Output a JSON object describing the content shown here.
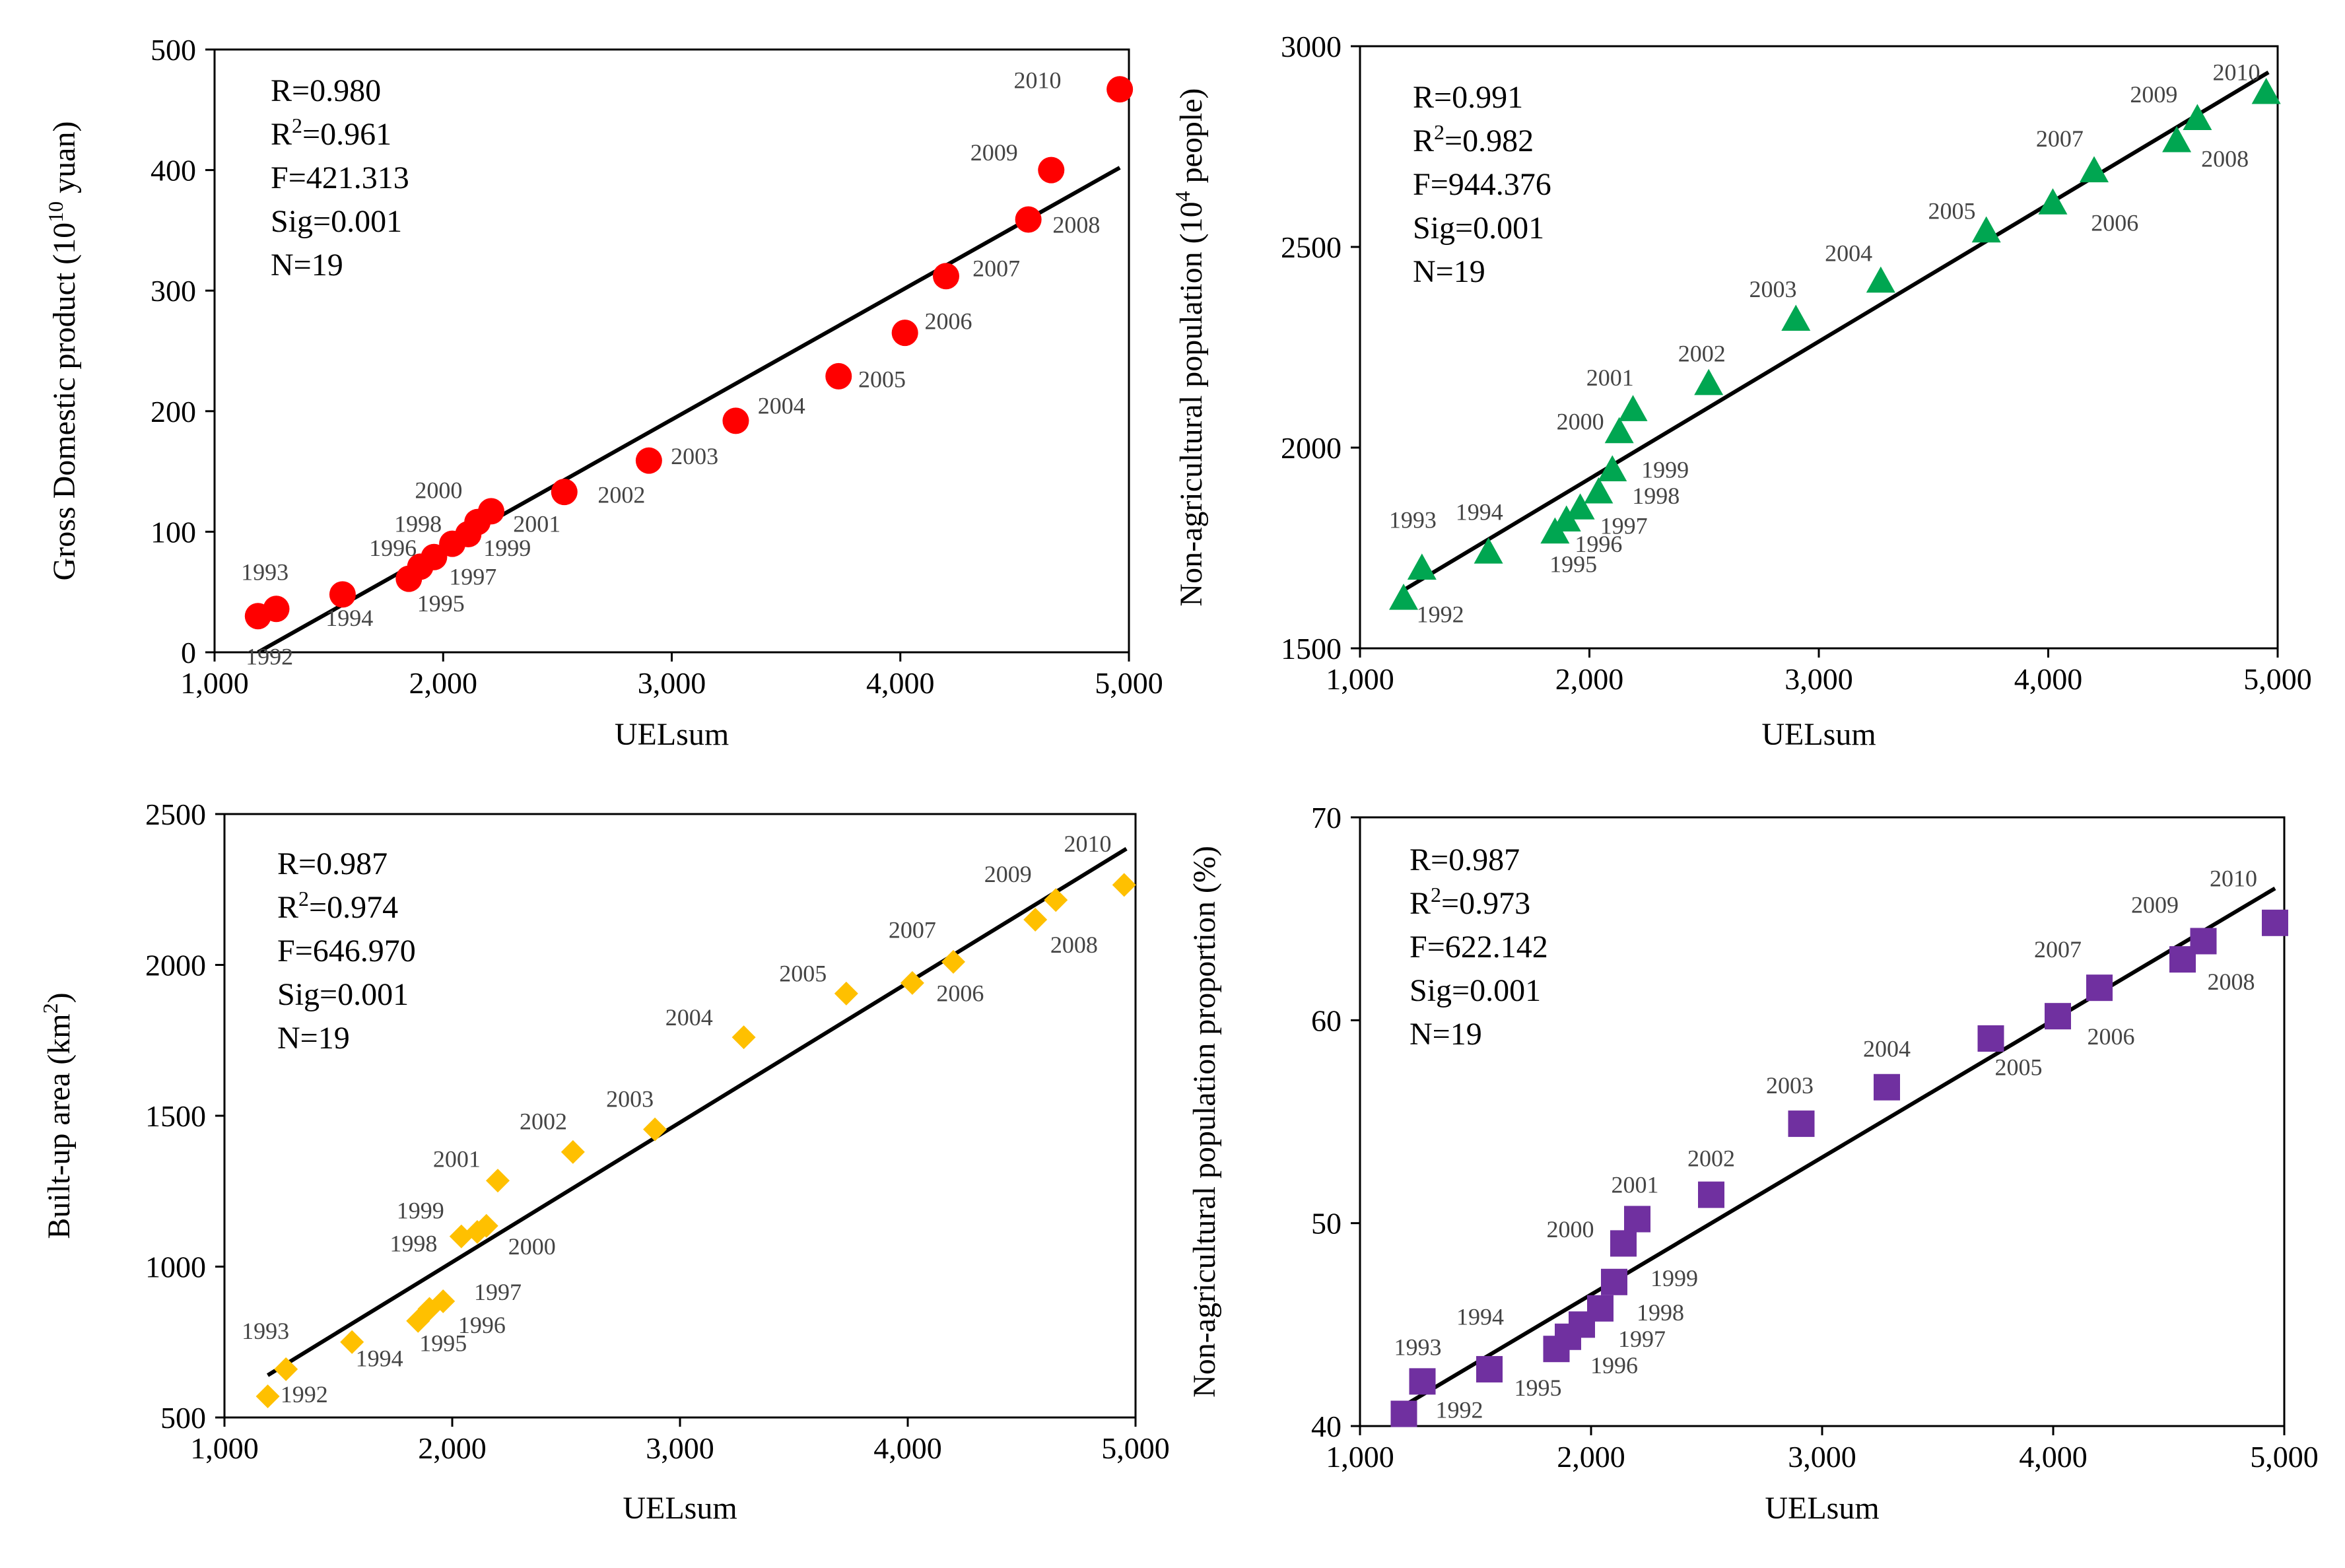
{
  "chart_data": [
    {
      "type": "scatter",
      "marker": "circle",
      "color": "#ff0000",
      "xlabel": "UELsum",
      "ylabel_parts": [
        "Gross Domestic product (10",
        "10",
        " yuan)"
      ],
      "xlim": [
        1000,
        5000
      ],
      "ylim": [
        0,
        500
      ],
      "xticks": [
        1000,
        2000,
        3000,
        4000,
        5000
      ],
      "xtick_labels": [
        "1,000",
        "2,000",
        "3,000",
        "4,000",
        "5,000"
      ],
      "yticks": [
        0,
        100,
        200,
        300,
        400,
        500
      ],
      "ytick_labels": [
        "0",
        "100",
        "200",
        "300",
        "400",
        "500"
      ],
      "stats": [
        {
          "pre": "R=0.980",
          "sup": "",
          "post": ""
        },
        {
          "pre": "R",
          "sup": "2",
          "post": "=0.961"
        },
        {
          "pre": "F=421.313",
          "sup": "",
          "post": ""
        },
        {
          "pre": "Sig=0.001",
          "sup": "",
          "post": ""
        },
        {
          "pre": "N=19",
          "sup": "",
          "post": ""
        }
      ],
      "fit": {
        "x1": 1190,
        "y1": 0,
        "x2": 4960,
        "y2": 402
      },
      "points": [
        {
          "year": "1992",
          "x": 1190,
          "y": 30,
          "lx": 1240,
          "ly": -10
        },
        {
          "year": "1993",
          "x": 1270,
          "y": 36,
          "lx": 1220,
          "ly": 60
        },
        {
          "year": "1994",
          "x": 1560,
          "y": 48,
          "lx": 1590,
          "ly": 22
        },
        {
          "year": "1995",
          "x": 1850,
          "y": 61,
          "lx": 1990,
          "ly": 34
        },
        {
          "year": "1996",
          "x": 1900,
          "y": 71,
          "lx": 1780,
          "ly": 80
        },
        {
          "year": "1997",
          "x": 1960,
          "y": 79,
          "lx": 2130,
          "ly": 56
        },
        {
          "year": "1998",
          "x": 2040,
          "y": 90,
          "lx": 1890,
          "ly": 100
        },
        {
          "year": "1999",
          "x": 2110,
          "y": 98,
          "lx": 2280,
          "ly": 80
        },
        {
          "year": "2000",
          "x": 2150,
          "y": 108,
          "lx": 1980,
          "ly": 128
        },
        {
          "year": "2001",
          "x": 2210,
          "y": 117,
          "lx": 2410,
          "ly": 100
        },
        {
          "year": "2002",
          "x": 2530,
          "y": 133,
          "lx": 2780,
          "ly": 124
        },
        {
          "year": "2003",
          "x": 2900,
          "y": 159,
          "lx": 3100,
          "ly": 156
        },
        {
          "year": "2004",
          "x": 3280,
          "y": 192,
          "lx": 3480,
          "ly": 198
        },
        {
          "year": "2005",
          "x": 3730,
          "y": 229,
          "lx": 3920,
          "ly": 220
        },
        {
          "year": "2006",
          "x": 4020,
          "y": 265,
          "lx": 4210,
          "ly": 268
        },
        {
          "year": "2007",
          "x": 4200,
          "y": 312,
          "lx": 4420,
          "ly": 312
        },
        {
          "year": "2008",
          "x": 4560,
          "y": 359,
          "lx": 4770,
          "ly": 348
        },
        {
          "year": "2009",
          "x": 4660,
          "y": 400,
          "lx": 4410,
          "ly": 408
        },
        {
          "year": "2010",
          "x": 4960,
          "y": 467,
          "lx": 4600,
          "ly": 468
        }
      ]
    },
    {
      "type": "scatter",
      "marker": "triangle",
      "color": "#00a651",
      "xlabel": "UELsum",
      "ylabel_parts": [
        "Non-agricultural population (10",
        "4",
        " people)"
      ],
      "xlim": [
        1000,
        5000
      ],
      "ylim": [
        1500,
        3000
      ],
      "xticks": [
        1000,
        2000,
        3000,
        4000,
        5000
      ],
      "xtick_labels": [
        "1,000",
        "2,000",
        "3,000",
        "4,000",
        "5,000"
      ],
      "yticks": [
        1500,
        2000,
        2500,
        3000
      ],
      "ytick_labels": [
        "1500",
        "2000",
        "2500",
        "3000"
      ],
      "stats": [
        {
          "pre": "R=0.991",
          "sup": "",
          "post": ""
        },
        {
          "pre": "R",
          "sup": "2",
          "post": "=0.982"
        },
        {
          "pre": "F=944.376",
          "sup": "",
          "post": ""
        },
        {
          "pre": "Sig=0.001",
          "sup": "",
          "post": ""
        },
        {
          "pre": "N=19",
          "sup": "",
          "post": ""
        }
      ],
      "fit": {
        "x1": 1190,
        "y1": 1645,
        "x2": 4960,
        "y2": 2935
      },
      "points": [
        {
          "year": "1992",
          "x": 1190,
          "y": 1625,
          "lx": 1350,
          "ly": 1565
        },
        {
          "year": "1993",
          "x": 1270,
          "y": 1700,
          "lx": 1230,
          "ly": 1800
        },
        {
          "year": "1994",
          "x": 1560,
          "y": 1740,
          "lx": 1520,
          "ly": 1820
        },
        {
          "year": "1995",
          "x": 1850,
          "y": 1790,
          "lx": 1930,
          "ly": 1690
        },
        {
          "year": "1996",
          "x": 1900,
          "y": 1820,
          "lx": 2040,
          "ly": 1740
        },
        {
          "year": "1997",
          "x": 1960,
          "y": 1850,
          "lx": 2150,
          "ly": 1785
        },
        {
          "year": "1998",
          "x": 2040,
          "y": 1890,
          "lx": 2290,
          "ly": 1860
        },
        {
          "year": "1999",
          "x": 2100,
          "y": 1945,
          "lx": 2330,
          "ly": 1925
        },
        {
          "year": "2000",
          "x": 2130,
          "y": 2040,
          "lx": 1960,
          "ly": 2045
        },
        {
          "year": "2001",
          "x": 2190,
          "y": 2095,
          "lx": 2090,
          "ly": 2155
        },
        {
          "year": "2002",
          "x": 2520,
          "y": 2160,
          "lx": 2490,
          "ly": 2215
        },
        {
          "year": "2003",
          "x": 2900,
          "y": 2320,
          "lx": 2800,
          "ly": 2375
        },
        {
          "year": "2004",
          "x": 3270,
          "y": 2415,
          "lx": 3130,
          "ly": 2465
        },
        {
          "year": "2005",
          "x": 3730,
          "y": 2540,
          "lx": 3580,
          "ly": 2570
        },
        {
          "year": "2006",
          "x": 4020,
          "y": 2610,
          "lx": 4290,
          "ly": 2540
        },
        {
          "year": "2007",
          "x": 4200,
          "y": 2690,
          "lx": 4050,
          "ly": 2750
        },
        {
          "year": "2008",
          "x": 4560,
          "y": 2765,
          "lx": 4770,
          "ly": 2700
        },
        {
          "year": "2009",
          "x": 4650,
          "y": 2820,
          "lx": 4460,
          "ly": 2860
        },
        {
          "year": "2010",
          "x": 4950,
          "y": 2885,
          "lx": 4820,
          "ly": 2915
        }
      ]
    },
    {
      "type": "scatter",
      "marker": "diamond",
      "color": "#ffc000",
      "xlabel": "UELsum",
      "ylabel_parts": [
        "Built-up area (km",
        "2",
        ")"
      ],
      "xlim": [
        1000,
        5000
      ],
      "ylim": [
        500,
        2500
      ],
      "xticks": [
        1000,
        2000,
        3000,
        4000,
        5000
      ],
      "xtick_labels": [
        "1,000",
        "2,000",
        "3,000",
        "4,000",
        "5,000"
      ],
      "yticks": [
        500,
        1000,
        1500,
        2000,
        2500
      ],
      "ytick_labels": [
        "500",
        "1000",
        "1500",
        "2000",
        "2500"
      ],
      "stats": [
        {
          "pre": "R=0.987",
          "sup": "",
          "post": ""
        },
        {
          "pre": "R",
          "sup": "2",
          "post": "=0.974"
        },
        {
          "pre": "F=646.970",
          "sup": "",
          "post": ""
        },
        {
          "pre": "Sig=0.001",
          "sup": "",
          "post": ""
        },
        {
          "pre": "N=19",
          "sup": "",
          "post": ""
        }
      ],
      "fit": {
        "x1": 1190,
        "y1": 640,
        "x2": 4960,
        "y2": 2385
      },
      "points": [
        {
          "year": "1992",
          "x": 1190,
          "y": 570,
          "lx": 1350,
          "ly": 550
        },
        {
          "year": "1993",
          "x": 1270,
          "y": 660,
          "lx": 1180,
          "ly": 760
        },
        {
          "year": "1994",
          "x": 1560,
          "y": 750,
          "lx": 1680,
          "ly": 670
        },
        {
          "year": "1995",
          "x": 1850,
          "y": 820,
          "lx": 1960,
          "ly": 720
        },
        {
          "year": "1996",
          "x": 1900,
          "y": 860,
          "lx": 2130,
          "ly": 780
        },
        {
          "year": "1997",
          "x": 1960,
          "y": 885,
          "lx": 2200,
          "ly": 890
        },
        {
          "year": "1998",
          "x": 2040,
          "y": 1100,
          "lx": 1830,
          "ly": 1050
        },
        {
          "year": "1999",
          "x": 2110,
          "y": 1115,
          "lx": 1860,
          "ly": 1160
        },
        {
          "year": "2000",
          "x": 2150,
          "y": 1135,
          "lx": 2350,
          "ly": 1040
        },
        {
          "year": "2001",
          "x": 2200,
          "y": 1285,
          "lx": 2020,
          "ly": 1330
        },
        {
          "year": "2002",
          "x": 2530,
          "y": 1380,
          "lx": 2400,
          "ly": 1455
        },
        {
          "year": "2003",
          "x": 2890,
          "y": 1455,
          "lx": 2780,
          "ly": 1530
        },
        {
          "year": "2004",
          "x": 3280,
          "y": 1760,
          "lx": 3040,
          "ly": 1800
        },
        {
          "year": "2005",
          "x": 3730,
          "y": 1905,
          "lx": 3540,
          "ly": 1945
        },
        {
          "year": "2006",
          "x": 4200,
          "y": 2010,
          "lx": 4230,
          "ly": 1880
        },
        {
          "year": "2007",
          "x": 4020,
          "y": 1940,
          "lx": 4020,
          "ly": 2090
        },
        {
          "year": "2008",
          "x": 4560,
          "y": 2150,
          "lx": 4730,
          "ly": 2040
        },
        {
          "year": "2009",
          "x": 4650,
          "y": 2215,
          "lx": 4440,
          "ly": 2275
        },
        {
          "year": "2010",
          "x": 4950,
          "y": 2265,
          "lx": 4790,
          "ly": 2375
        }
      ]
    },
    {
      "type": "scatter",
      "marker": "square",
      "color": "#7030a0",
      "xlabel": "UELsum",
      "ylabel_parts": [
        "Non-agricultural population proportion (%)",
        "",
        ""
      ],
      "xlim": [
        1000,
        5000
      ],
      "ylim": [
        40,
        70
      ],
      "xticks": [
        1000,
        2000,
        3000,
        4000,
        5000
      ],
      "xtick_labels": [
        "1,000",
        "2,000",
        "3,000",
        "4,000",
        "5,000"
      ],
      "yticks": [
        40,
        50,
        60,
        70
      ],
      "ytick_labels": [
        "40",
        "50",
        "60",
        "70"
      ],
      "stats": [
        {
          "pre": "R=0.987",
          "sup": "",
          "post": ""
        },
        {
          "pre": "R",
          "sup": "2",
          "post": "=0.973"
        },
        {
          "pre": "F=622.142",
          "sup": "",
          "post": ""
        },
        {
          "pre": "Sig=0.001",
          "sup": "",
          "post": ""
        },
        {
          "pre": "N=19",
          "sup": "",
          "post": ""
        }
      ],
      "fit": {
        "x1": 1190,
        "y1": 41.0,
        "x2": 4960,
        "y2": 66.5
      },
      "points": [
        {
          "year": "1992",
          "x": 1190,
          "y": 40.6,
          "lx": 1430,
          "ly": 40.4
        },
        {
          "year": "1993",
          "x": 1270,
          "y": 42.2,
          "lx": 1250,
          "ly": 43.5
        },
        {
          "year": "1994",
          "x": 1560,
          "y": 42.8,
          "lx": 1520,
          "ly": 45.0
        },
        {
          "year": "1995",
          "x": 1850,
          "y": 43.8,
          "lx": 1770,
          "ly": 41.5
        },
        {
          "year": "1996",
          "x": 1900,
          "y": 44.4,
          "lx": 2100,
          "ly": 42.6
        },
        {
          "year": "1997",
          "x": 1960,
          "y": 45.0,
          "lx": 2220,
          "ly": 43.9
        },
        {
          "year": "1998",
          "x": 2040,
          "y": 45.8,
          "lx": 2300,
          "ly": 45.2
        },
        {
          "year": "1999",
          "x": 2100,
          "y": 47.1,
          "lx": 2360,
          "ly": 46.9
        },
        {
          "year": "2000",
          "x": 2140,
          "y": 49.0,
          "lx": 1910,
          "ly": 49.3
        },
        {
          "year": "2001",
          "x": 2200,
          "y": 50.2,
          "lx": 2190,
          "ly": 51.5
        },
        {
          "year": "2002",
          "x": 2520,
          "y": 51.4,
          "lx": 2520,
          "ly": 52.8
        },
        {
          "year": "2003",
          "x": 2910,
          "y": 54.9,
          "lx": 2860,
          "ly": 56.4
        },
        {
          "year": "2004",
          "x": 3280,
          "y": 56.7,
          "lx": 3280,
          "ly": 58.2
        },
        {
          "year": "2005",
          "x": 3730,
          "y": 59.1,
          "lx": 3850,
          "ly": 57.3
        },
        {
          "year": "2006",
          "x": 4020,
          "y": 60.2,
          "lx": 4250,
          "ly": 58.8
        },
        {
          "year": "2007",
          "x": 4200,
          "y": 61.6,
          "lx": 4020,
          "ly": 63.1
        },
        {
          "year": "2008",
          "x": 4560,
          "y": 63.0,
          "lx": 4770,
          "ly": 61.5
        },
        {
          "year": "2009",
          "x": 4650,
          "y": 63.9,
          "lx": 4440,
          "ly": 65.3
        },
        {
          "year": "2010",
          "x": 4960,
          "y": 64.8,
          "lx": 4780,
          "ly": 66.6
        }
      ]
    }
  ]
}
